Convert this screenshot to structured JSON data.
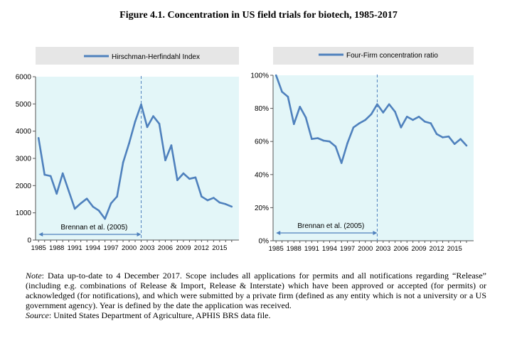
{
  "figure_title": "Figure 4.1. Concentration in US field trials for biotech, 1985-2017",
  "note_label": "Note",
  "note_text": ": Data up-to-date to 4 December 2017. Scope includes all applications for permits and all notifications regarding “Release” (including e.g. combinations of Release & Import, Release & Interstate) which have been approved or accepted (for permits) or acknowledged (for notifications), and which were submitted by a private firm (defined as any entity which is not a university or a US government agency). Year is defined by the date the application was received.",
  "source_label": "Source",
  "source_text": ": United States Department of Agriculture, APHIS BRS data file.",
  "colors": {
    "line": "#4f81bd",
    "plot_background": "#e3f6f8",
    "legend_background": "#e6e6e6"
  },
  "chart_data": [
    {
      "type": "line",
      "title": "",
      "legend": "Hirschman-Herfindahl Index",
      "legend_position": "top",
      "x": [
        1985,
        1986,
        1987,
        1988,
        1989,
        1990,
        1991,
        1992,
        1993,
        1994,
        1995,
        1996,
        1997,
        1998,
        1999,
        2000,
        2001,
        2002,
        2003,
        2004,
        2005,
        2006,
        2007,
        2008,
        2009,
        2010,
        2011,
        2012,
        2013,
        2014,
        2015,
        2016,
        2017
      ],
      "series": [
        {
          "name": "Hirschman-Herfindahl Index",
          "values": [
            3750,
            2400,
            2350,
            1700,
            2450,
            1800,
            1150,
            1350,
            1520,
            1230,
            1080,
            780,
            1350,
            1600,
            2850,
            3550,
            4350,
            4980,
            4150,
            4550,
            4270,
            2930,
            3480,
            2200,
            2450,
            2250,
            2300,
            1600,
            1460,
            1550,
            1380,
            1320,
            1230
          ]
        }
      ],
      "xticks": [
        "1985",
        "1988",
        "1991",
        "1994",
        "1997",
        "2000",
        "2003",
        "2006",
        "2009",
        "2012",
        "2015"
      ],
      "yticks": [
        "0",
        "1000",
        "2000",
        "3000",
        "4000",
        "5000",
        "6000"
      ],
      "ylim": [
        0,
        6000
      ],
      "xlabel": "",
      "ylabel": "",
      "grid": false,
      "vline_x": 2002,
      "annotation": {
        "text": "Brennan et al. (2005)",
        "x_from": 1985,
        "x_to": 2002
      }
    },
    {
      "type": "line",
      "title": "",
      "legend": "Four-Firm concentration ratio",
      "legend_position": "top",
      "x": [
        1985,
        1986,
        1987,
        1988,
        1989,
        1990,
        1991,
        1992,
        1993,
        1994,
        1995,
        1996,
        1997,
        1998,
        1999,
        2000,
        2001,
        2002,
        2003,
        2004,
        2005,
        2006,
        2007,
        2008,
        2009,
        2010,
        2011,
        2012,
        2013,
        2014,
        2015,
        2016,
        2017
      ],
      "series": [
        {
          "name": "Four-Firm concentration ratio",
          "values": [
            1.0,
            0.9,
            0.87,
            0.705,
            0.81,
            0.745,
            0.615,
            0.62,
            0.605,
            0.6,
            0.57,
            0.47,
            0.59,
            0.685,
            0.71,
            0.73,
            0.765,
            0.825,
            0.775,
            0.825,
            0.78,
            0.685,
            0.75,
            0.73,
            0.75,
            0.72,
            0.71,
            0.645,
            0.625,
            0.63,
            0.585,
            0.615,
            0.575
          ]
        }
      ],
      "xticks": [
        "1985",
        "1988",
        "1991",
        "1994",
        "1997",
        "2000",
        "2003",
        "2006",
        "2009",
        "2012",
        "2015"
      ],
      "yticks": [
        "0%",
        "20%",
        "40%",
        "60%",
        "80%",
        "100%"
      ],
      "ylim": [
        0,
        1
      ],
      "xlabel": "",
      "ylabel": "",
      "grid": false,
      "vline_x": 2002,
      "annotation": {
        "text": "Brennan et al. (2005)",
        "x_from": 1985,
        "x_to": 2002
      }
    }
  ]
}
